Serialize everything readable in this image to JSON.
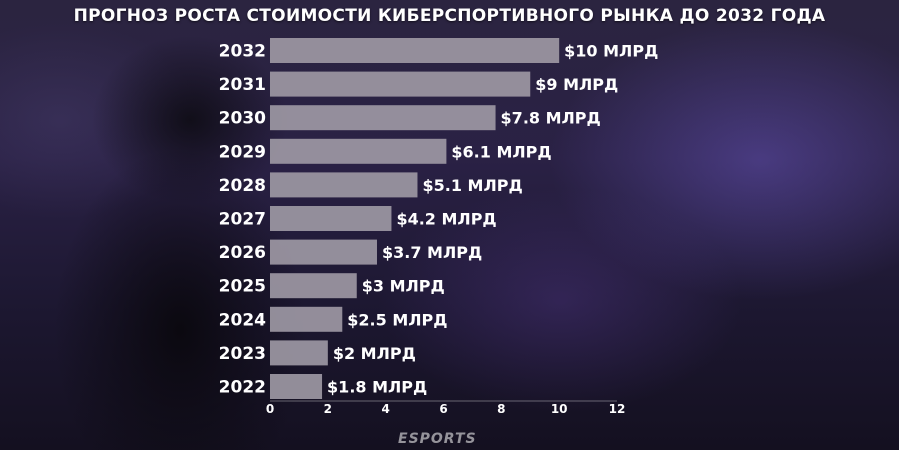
{
  "chart_data": {
    "type": "bar",
    "orientation": "horizontal",
    "title": "ПРОГНОЗ РОСТА СТОИМОСТИ КИБЕРСПОРТИВНОГО РЫНКА ДО 2032 ГОДА",
    "categories": [
      "2032",
      "2031",
      "2030",
      "2029",
      "2028",
      "2027",
      "2026",
      "2025",
      "2024",
      "2023",
      "2022"
    ],
    "values": [
      10,
      9,
      7.8,
      6.1,
      5.1,
      4.2,
      3.7,
      3,
      2.5,
      2,
      1.8
    ],
    "value_labels": [
      "$10 МЛРД",
      "$9 МЛРД",
      "$7.8 МЛРД",
      "$6.1 МЛРД",
      "$5.1 МЛРД",
      "$4.2 МЛРД",
      "$3.7 МЛРД",
      "$3 МЛРД",
      "$2.5 МЛРД",
      "$2 МЛРД",
      "$1.8 МЛРД"
    ],
    "xlim": [
      0,
      12
    ],
    "xticks": [
      0,
      2,
      4,
      6,
      8,
      10,
      12
    ],
    "xlabel": "",
    "ylabel": "",
    "grid": false,
    "bar_color": "#9c97a3"
  },
  "watermark": "ESPORTS"
}
